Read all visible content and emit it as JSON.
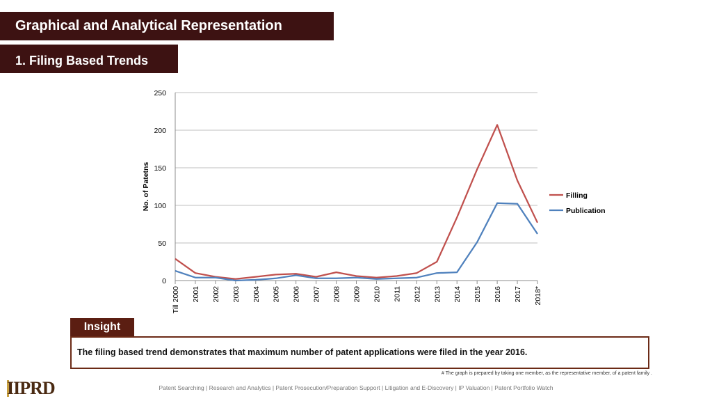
{
  "header": {
    "title": "Graphical and Analytical Representation",
    "section": "1. Filing Based Trends"
  },
  "chart_data": {
    "type": "line",
    "title": "",
    "xlabel": "",
    "ylabel": "No. of Patetns",
    "ylim": [
      0,
      250
    ],
    "yticks": [
      0,
      50,
      100,
      150,
      200,
      250
    ],
    "categories": [
      "Till 2000",
      "2001",
      "2002",
      "2003",
      "2004",
      "2005",
      "2006",
      "2007",
      "2008",
      "2009",
      "2010",
      "2011",
      "2012",
      "2013",
      "2014",
      "2015",
      "2016",
      "2017",
      "2018*"
    ],
    "series": [
      {
        "name": "Filling",
        "color": "#c0504d",
        "values": [
          29,
          10,
          5,
          2,
          5,
          8,
          9,
          5,
          11,
          6,
          4,
          6,
          10,
          25,
          84,
          148,
          207,
          133,
          77
        ]
      },
      {
        "name": "Publication",
        "color": "#4f81bd",
        "values": [
          13,
          4,
          4,
          0,
          1,
          3,
          7,
          3,
          3,
          4,
          2,
          3,
          4,
          10,
          11,
          51,
          103,
          102,
          62
        ]
      }
    ],
    "legend_position": "right",
    "grid": true
  },
  "insight": {
    "label": "Insight",
    "text": "The filing based trend demonstrates that maximum number of patent applications were filed in the year 2016."
  },
  "footnote": "# The graph is prepared by taking one member, as the representative member, of a patent family .",
  "logo": "IIPRD",
  "footer": "Patent Searching | Research and Analytics | Patent Prosecution/Preparation Support | Litigation and E-Discovery | IP Valuation | Patent Portfolio Watch"
}
